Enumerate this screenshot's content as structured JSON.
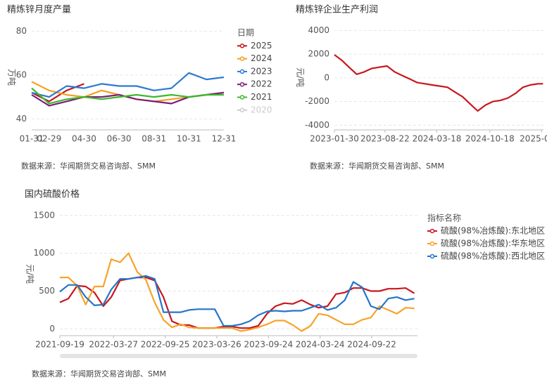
{
  "chart_data": [
    {
      "type": "line",
      "title": "精炼锌月度产量",
      "ylabel": "万吨",
      "source": "数据来源：华闻期货交易咨询部、SMM",
      "legend_title": "日期",
      "categories": [
        "01-31",
        "02-29",
        null,
        "04-30",
        null,
        "06-30",
        null,
        "08-31",
        null,
        "10-31",
        null,
        "12-31"
      ],
      "ylim": [
        35,
        83
      ],
      "yticks": [
        40,
        60,
        80
      ],
      "grid": true,
      "series": [
        {
          "name": "2025",
          "color": "#c8171e",
          "values": [
            52,
            48,
            53,
            56,
            null,
            null,
            null,
            null,
            null,
            null,
            null,
            null
          ]
        },
        {
          "name": "2024",
          "color": "#f5a020",
          "values": [
            57,
            53,
            51,
            50,
            53,
            51,
            49,
            48,
            49,
            50,
            51,
            52
          ]
        },
        {
          "name": "2023",
          "color": "#2b7bd0",
          "values": [
            52,
            50,
            55,
            54,
            56,
            55,
            55,
            53,
            54,
            61,
            58,
            59
          ]
        },
        {
          "name": "2022",
          "color": "#7a1f7a",
          "values": [
            51,
            46,
            48,
            50,
            50,
            51,
            49,
            48,
            47,
            50,
            51,
            52
          ]
        },
        {
          "name": "2021",
          "color": "#3cb92c",
          "values": [
            54,
            47,
            49,
            50,
            49,
            50,
            51,
            50,
            51,
            50,
            51,
            51
          ]
        },
        {
          "name": "2020",
          "color": "#cccccc",
          "hidden": true,
          "values": [
            null,
            null,
            null,
            null,
            null,
            null,
            null,
            null,
            null,
            null,
            null,
            null
          ]
        }
      ]
    },
    {
      "type": "line",
      "title": "精炼锌企业生产利润",
      "ylabel": "元/吨",
      "source": "数据来源：华闻期货交易咨询部、SMM",
      "color": "#c8171e",
      "x": [
        "2023-01-30",
        "2023-02-28",
        "2023-03-30",
        "2023-04-30",
        "2023-05-30",
        "2023-06-30",
        "2023-07-30",
        "2023-08-30",
        "2023-09-30",
        "2023-10-30",
        "2023-11-30",
        "2023-12-30",
        "2024-01-30",
        "2024-02-28",
        "2024-03-30",
        "2024-04-30",
        "2024-05-30",
        "2024-06-30",
        "2024-07-30",
        "2024-08-30",
        "2024-09-30",
        "2024-10-30",
        "2024-11-30",
        "2024-12-30",
        "2025-01-30",
        "2025-02-28",
        "2025-03-30",
        "2025-04-30",
        "2025-05-20"
      ],
      "values": [
        1950,
        1500,
        900,
        300,
        500,
        800,
        900,
        1000,
        500,
        200,
        -100,
        -400,
        -500,
        -600,
        -700,
        -800,
        -1200,
        -1600,
        -2200,
        -2800,
        -2300,
        -2000,
        -1900,
        -1700,
        -1300,
        -800,
        -600,
        -500,
        -500
      ],
      "xlim": [
        "2023-01-30",
        "2025-05-22"
      ],
      "xticks": [
        "2023-01-30",
        "2023-08-22",
        "2024-03-18",
        "2024-10-18",
        {
          "value": "2025-05-14",
          "label": "2025-0"
        }
      ],
      "ylim": [
        -4400,
        4500
      ],
      "yticks": [
        -4000,
        -2000,
        0,
        2000,
        4000
      ],
      "grid": true
    },
    {
      "type": "line",
      "title": "国内硫酸价格",
      "ylabel": "元/吨",
      "source": "数据来源：华闻期货交易咨询部、SMM",
      "legend_title": "指标名称",
      "x": [
        "2021-09-19",
        "2021-10-19",
        "2021-11-19",
        "2021-12-19",
        "2022-01-19",
        "2022-02-19",
        "2022-03-19",
        "2022-04-19",
        "2022-05-19",
        "2022-06-19",
        "2022-07-19",
        "2022-08-19",
        "2022-09-19",
        "2022-10-19",
        "2022-11-19",
        "2022-12-19",
        "2023-01-19",
        "2023-02-19",
        "2023-03-19",
        "2023-04-19",
        "2023-05-19",
        "2023-06-19",
        "2023-07-19",
        "2023-08-19",
        "2023-09-19",
        "2023-10-19",
        "2023-11-19",
        "2023-12-19",
        "2024-01-19",
        "2024-02-19",
        "2024-03-19",
        "2024-04-19",
        "2024-05-19",
        "2024-06-19",
        "2024-07-19",
        "2024-08-19",
        "2024-09-19",
        "2024-10-19",
        "2024-11-19",
        "2024-12-19",
        "2025-01-19",
        "2025-02-19"
      ],
      "xlim": [
        "2021-09-19",
        "2025-03-02"
      ],
      "xticks": [
        "2021-09-19",
        "2022-03-27",
        "2022-09-25",
        "2023-03-26",
        "2023-09-24",
        "2024-03-24",
        "2024-09-22"
      ],
      "ylim": [
        -90,
        1600
      ],
      "yticks": [
        0,
        500,
        1000,
        1500
      ],
      "grid": true,
      "series": [
        {
          "name": "硫酸(98%冶炼酸):东北地区",
          "color": "#c8171e",
          "values": [
            350,
            400,
            570,
            560,
            480,
            300,
            420,
            640,
            660,
            680,
            680,
            640,
            420,
            100,
            50,
            50,
            10,
            10,
            10,
            30,
            30,
            10,
            10,
            40,
            200,
            300,
            340,
            330,
            380,
            320,
            280,
            300,
            460,
            480,
            540,
            540,
            500,
            500,
            530,
            530,
            540,
            470
          ]
        },
        {
          "name": "硫酸(98%冶炼酸):华东地区",
          "color": "#f7a32a",
          "values": [
            680,
            680,
            570,
            320,
            560,
            560,
            920,
            880,
            1000,
            750,
            650,
            350,
            120,
            20,
            60,
            20,
            10,
            10,
            10,
            10,
            10,
            -30,
            -10,
            20,
            60,
            110,
            110,
            50,
            -30,
            40,
            200,
            180,
            120,
            60,
            60,
            120,
            150,
            300,
            250,
            200,
            280,
            270
          ]
        },
        {
          "name": "硫酸(98%冶炼酸):西北地区",
          "color": "#2575c9",
          "values": [
            490,
            580,
            580,
            420,
            310,
            320,
            520,
            660,
            660,
            680,
            700,
            660,
            220,
            220,
            220,
            250,
            260,
            260,
            260,
            40,
            40,
            60,
            100,
            180,
            230,
            240,
            230,
            240,
            240,
            280,
            320,
            250,
            280,
            380,
            620,
            550,
            300,
            260,
            400,
            420,
            380,
            400
          ]
        }
      ]
    }
  ]
}
